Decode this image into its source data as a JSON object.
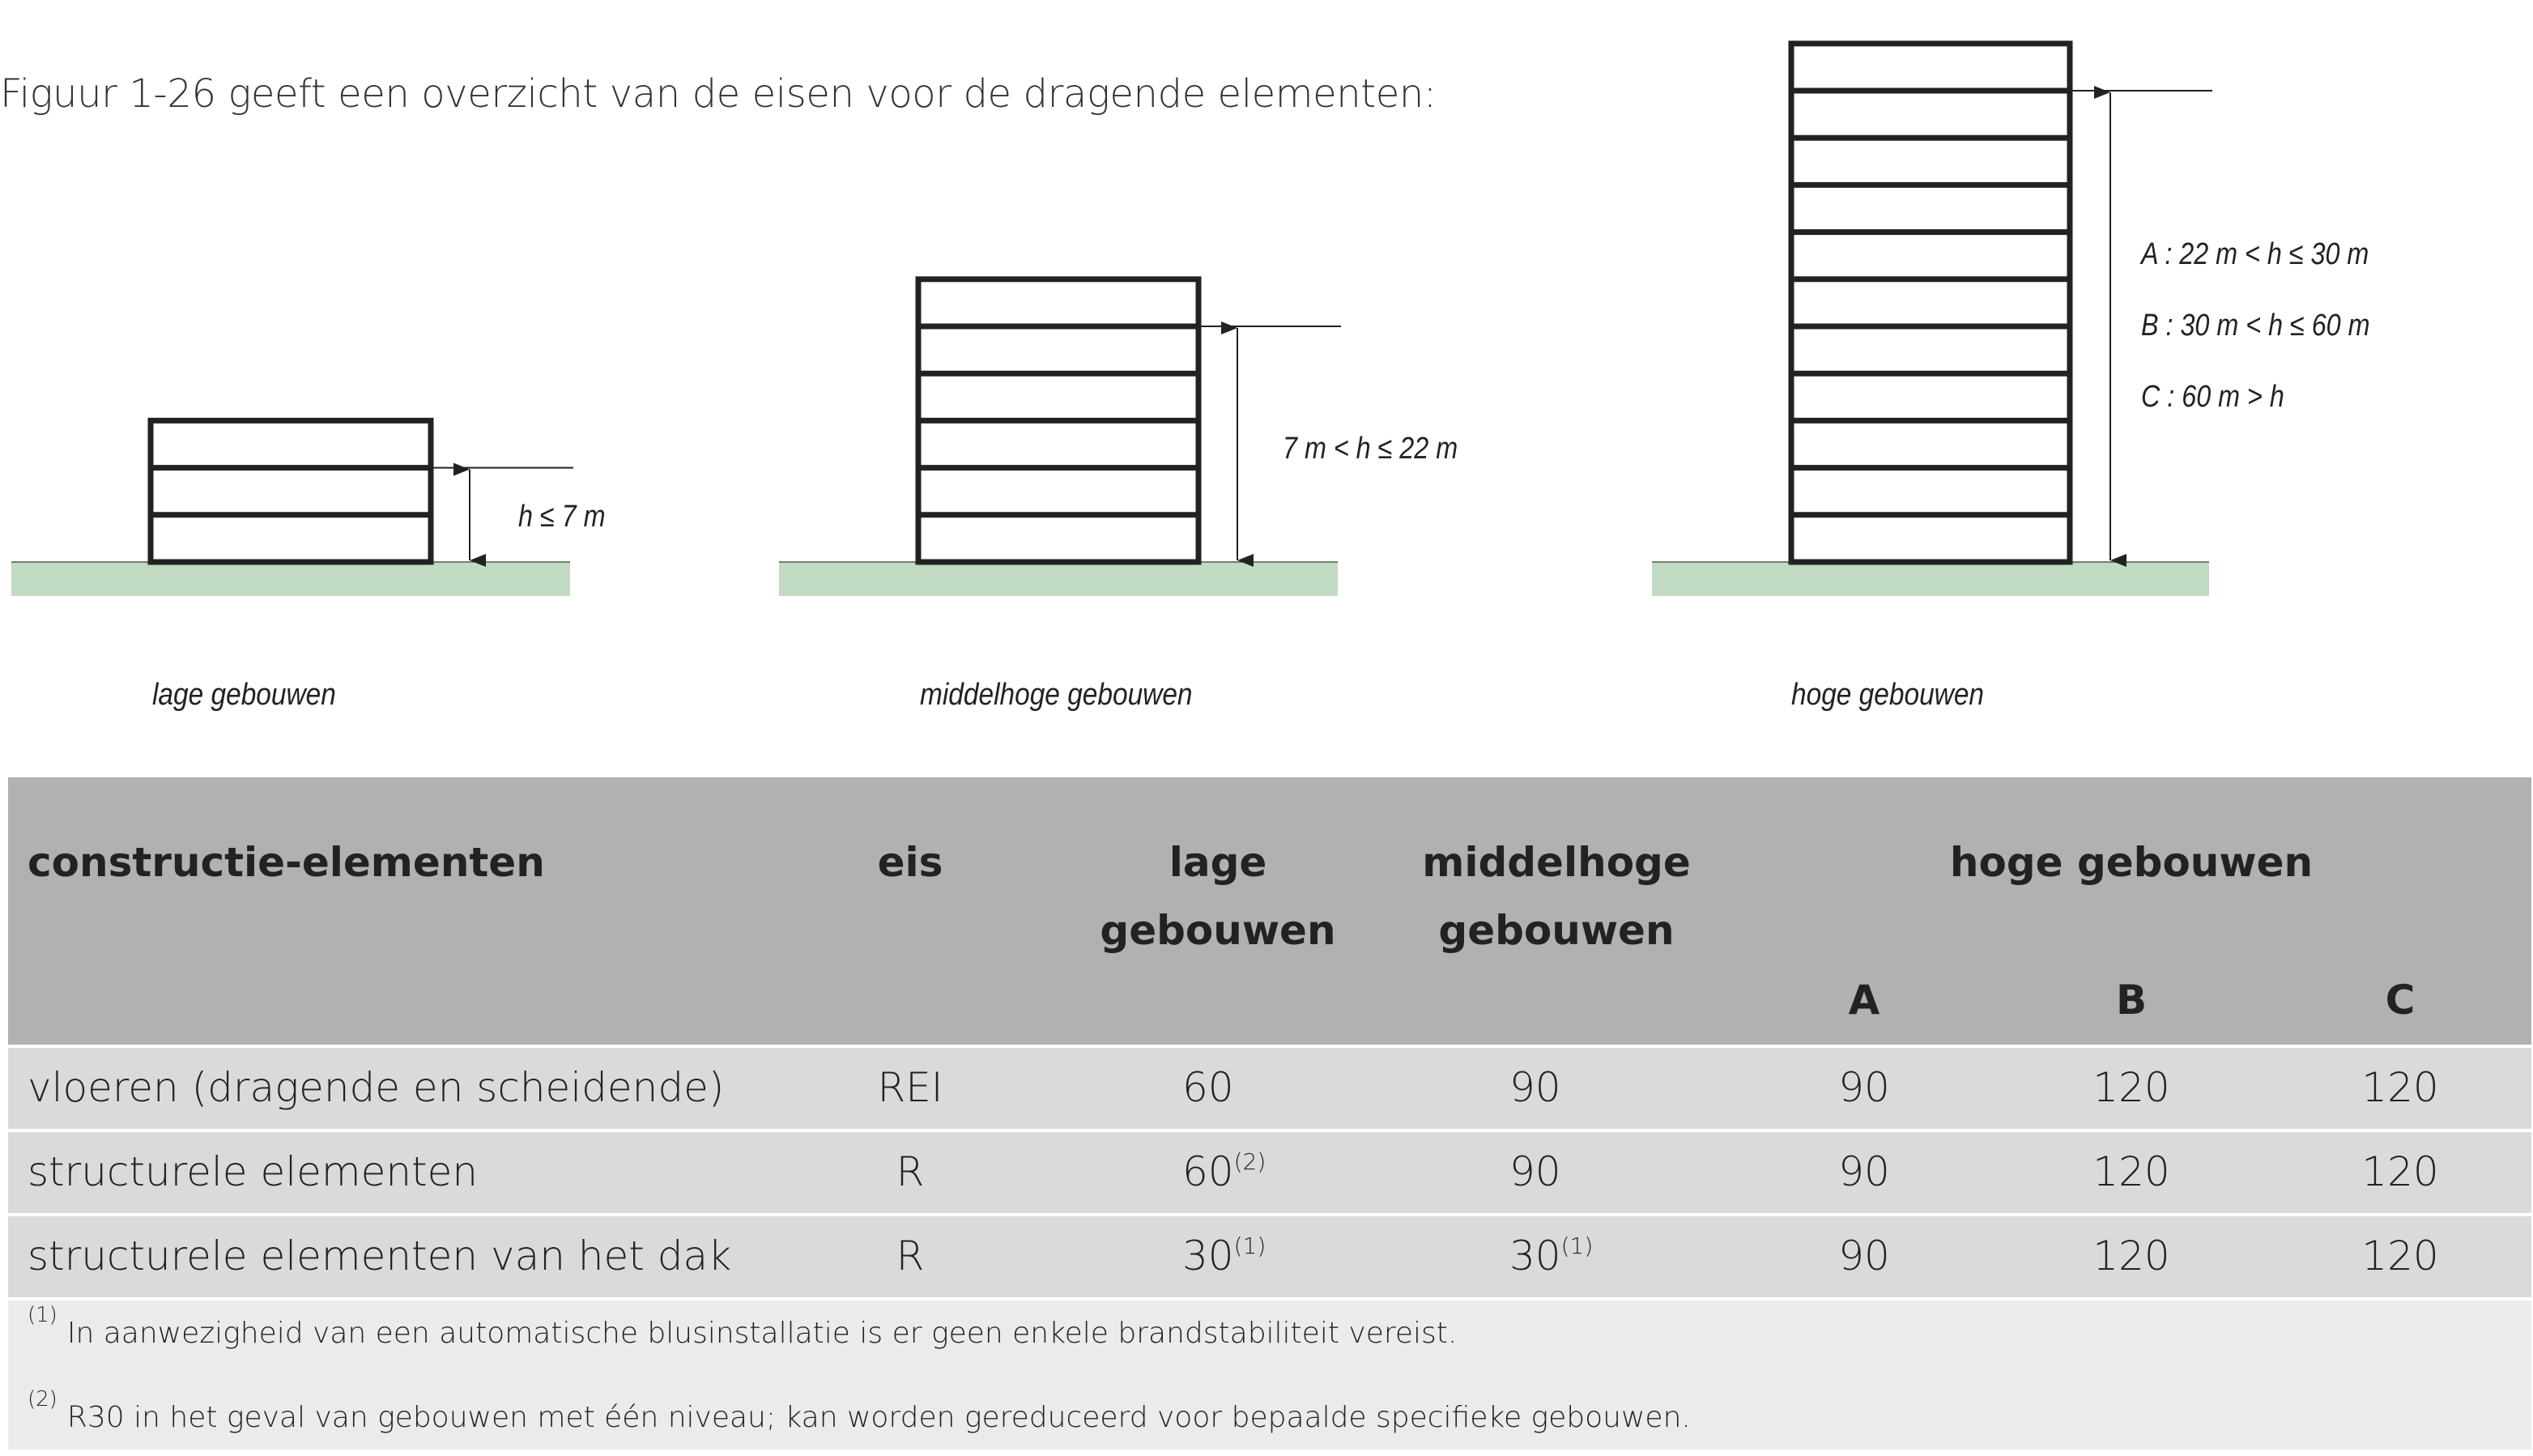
{
  "intro": "Figuur 1-26 geeft een overzicht van de eisen voor de dragende elementen:",
  "figure": {
    "ground_color": "#c0dbc2",
    "buildings": [
      {
        "caption": "lage gebouwen",
        "floors": 3,
        "height_label": "h ≤ 7 m"
      },
      {
        "caption": "middelhoge gebouwen",
        "floors": 6,
        "height_label": "7 m  < h ≤ 22 m"
      },
      {
        "caption": "hoge gebouwen",
        "floors": 11,
        "height_labels": [
          "A : 22 m  < h ≤ 30 m",
          "B : 30 m  < h ≤ 60 m",
          "C : 60 m  > h"
        ]
      }
    ]
  },
  "table": {
    "colors": {
      "header": "#b1b1b0",
      "row": "#dadada",
      "footnotes": "#ebebeb"
    },
    "headers": {
      "element": "constructie-elementen",
      "eis": "eis",
      "lage_1": "lage",
      "lage_2": "gebouwen",
      "middel_1": "middelhoge",
      "middel_2": "gebouwen",
      "hoge": "hoge gebouwen",
      "a": "A",
      "b": "B",
      "c": "C"
    },
    "rows": [
      {
        "element": "vloeren (dragende en scheidende)",
        "eis": "REI",
        "lage": "60",
        "lage_note": "",
        "middel": "90",
        "middel_note": "",
        "a": "90",
        "b": "120",
        "c": "120"
      },
      {
        "element": "structurele elementen",
        "eis": "R",
        "lage": "60",
        "lage_note": "(2)",
        "middel": "90",
        "middel_note": "",
        "a": "90",
        "b": "120",
        "c": "120"
      },
      {
        "element": "structurele elementen van het dak",
        "eis": "R",
        "lage": "30",
        "lage_note": "(1)",
        "middel": "30",
        "middel_note": "(1)",
        "a": "90",
        "b": "120",
        "c": "120"
      }
    ],
    "footnotes": [
      {
        "mark": "(1)",
        "text": "In aanwezigheid van een automatische blusinstallatie is er geen enkele brandstabiliteit vereist."
      },
      {
        "mark": "(2)",
        "text": "R30 in het geval van gebouwen met één niveau; kan worden gereduceerd voor bepaalde specifieke gebouwen."
      }
    ]
  }
}
